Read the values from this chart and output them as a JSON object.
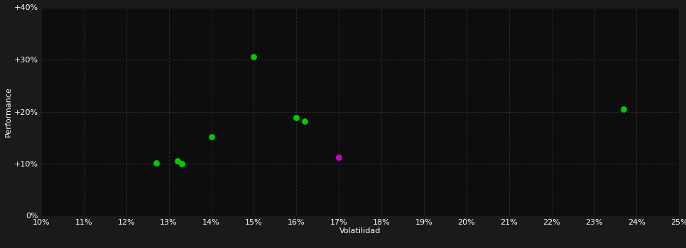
{
  "background_color": "#1a1a1a",
  "plot_bg_color": "#0d0d0d",
  "grid_color": "#2a2a2a",
  "text_color": "#ffffff",
  "xlabel": "Volatilidad",
  "ylabel": "Performance",
  "xlim": [
    0.1,
    0.25
  ],
  "ylim": [
    0.0,
    0.4
  ],
  "xticks": [
    0.1,
    0.11,
    0.12,
    0.13,
    0.14,
    0.15,
    0.16,
    0.17,
    0.18,
    0.19,
    0.2,
    0.21,
    0.22,
    0.23,
    0.24,
    0.25
  ],
  "yticks": [
    0.0,
    0.1,
    0.2,
    0.3,
    0.4
  ],
  "ytick_labels": [
    "0%",
    "+10%",
    "+20%",
    "+30%",
    "+40%"
  ],
  "xtick_labels": [
    "10%",
    "11%",
    "12%",
    "13%",
    "14%",
    "15%",
    "16%",
    "17%",
    "18%",
    "19%",
    "20%",
    "21%",
    "22%",
    "23%",
    "24%",
    "25%"
  ],
  "green_points": [
    [
      0.15,
      0.305
    ],
    [
      0.127,
      0.102
    ],
    [
      0.132,
      0.105
    ],
    [
      0.133,
      0.1
    ],
    [
      0.14,
      0.152
    ],
    [
      0.16,
      0.188
    ],
    [
      0.162,
      0.182
    ],
    [
      0.237,
      0.205
    ]
  ],
  "magenta_points": [
    [
      0.17,
      0.112
    ]
  ],
  "green_color": "#00cc00",
  "magenta_color": "#cc00cc",
  "marker_size": 40,
  "axis_fontsize": 8,
  "tick_fontsize": 8
}
